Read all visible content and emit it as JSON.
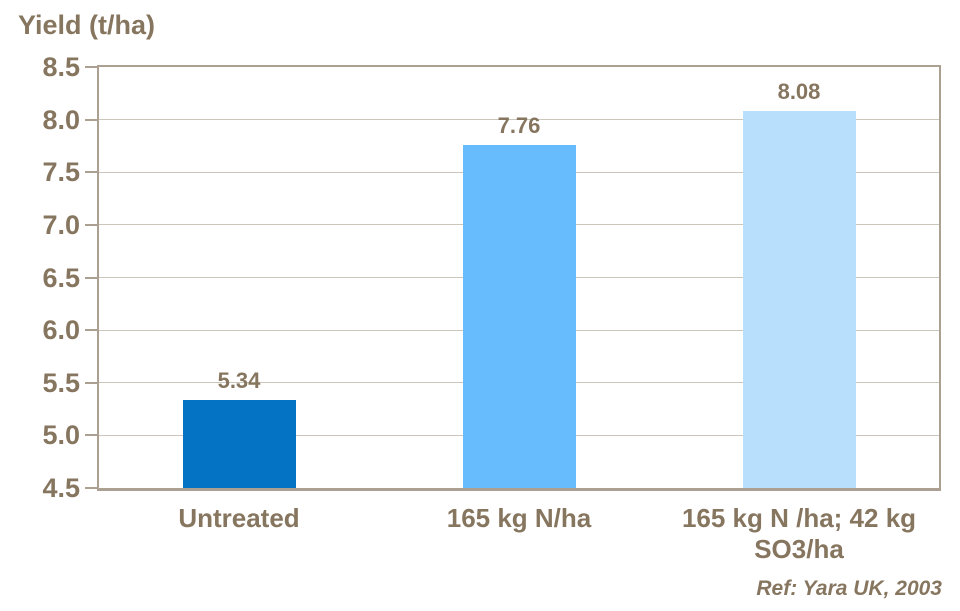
{
  "colors": {
    "text": "#87765F",
    "axis": "#ABA092",
    "grid": "#CBC5BA"
  },
  "chart_data": {
    "type": "bar",
    "title": "Yield (t/ha)",
    "ylabel": "Yield (t/ha)",
    "xlabel": "",
    "categories": [
      "Untreated",
      "165 kg N/ha",
      "165 kg N /ha; 42 kg SO3/ha"
    ],
    "values": [
      5.34,
      7.76,
      8.08
    ],
    "value_labels": [
      "5.34",
      "7.76",
      "8.08"
    ],
    "bar_colors": [
      "#0473C4",
      "#66BCFC",
      "#B8DFFC"
    ],
    "ylim": [
      4.5,
      8.5
    ],
    "ytick_step": 0.5,
    "ytick_labels": [
      "4.5",
      "5.0",
      "5.5",
      "6.0",
      "6.5",
      "7.0",
      "7.5",
      "8.0",
      "8.5"
    ],
    "grid": true,
    "legend": null,
    "annotation": "Ref: Yara UK, 2003"
  }
}
